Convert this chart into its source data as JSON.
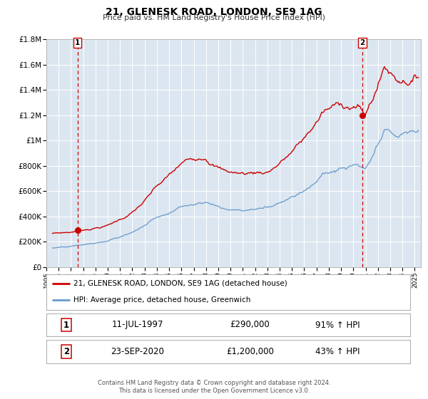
{
  "title": "21, GLENESK ROAD, LONDON, SE9 1AG",
  "subtitle": "Price paid vs. HM Land Registry's House Price Index (HPI)",
  "bg_color": "#dce6f0",
  "red_line_color": "#cc0000",
  "blue_line_color": "#6699cc",
  "dashed_line_color": "#cc0000",
  "ylim": [
    0,
    1800000
  ],
  "xlim_start": 1995.5,
  "xlim_end": 2025.5,
  "yticks": [
    0,
    200000,
    400000,
    600000,
    800000,
    1000000,
    1200000,
    1400000,
    1600000,
    1800000
  ],
  "ytick_labels": [
    "£0",
    "£200K",
    "£400K",
    "£600K",
    "£800K",
    "£1M",
    "£1.2M",
    "£1.4M",
    "£1.6M",
    "£1.8M"
  ],
  "xtick_years": [
    1995,
    1996,
    1997,
    1998,
    1999,
    2000,
    2001,
    2002,
    2003,
    2004,
    2005,
    2006,
    2007,
    2008,
    2009,
    2010,
    2011,
    2012,
    2013,
    2014,
    2015,
    2016,
    2017,
    2018,
    2019,
    2020,
    2021,
    2022,
    2023,
    2024,
    2025
  ],
  "marker1_x": 1997.54,
  "marker1_y": 290000,
  "marker2_x": 2020.73,
  "marker2_y": 1200000,
  "marker1_label": "1",
  "marker2_label": "2",
  "legend_line1": "21, GLENESK ROAD, LONDON, SE9 1AG (detached house)",
  "legend_line2": "HPI: Average price, detached house, Greenwich",
  "table_row1_label": "1",
  "table_row1_date": "11-JUL-1997",
  "table_row1_price": "£290,000",
  "table_row1_hpi": "91% ↑ HPI",
  "table_row2_label": "2",
  "table_row2_date": "23-SEP-2020",
  "table_row2_price": "£1,200,000",
  "table_row2_hpi": "43% ↑ HPI",
  "footer1": "Contains HM Land Registry data © Crown copyright and database right 2024.",
  "footer2": "This data is licensed under the Open Government Licence v3.0."
}
